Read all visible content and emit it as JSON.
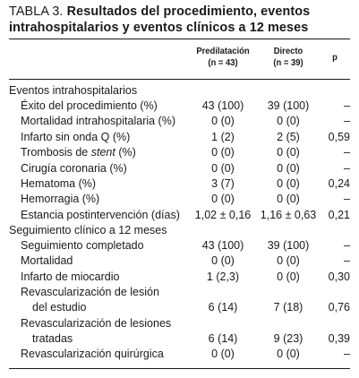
{
  "table": {
    "title_lead": "TABLA 3.",
    "title_bold": "Resultados del procedimiento, eventos intrahospitalarios y eventos clínicos a 12 meses",
    "headers": {
      "col1_line1": "Predilatación",
      "col1_line2": "(n = 43)",
      "col2_line1": "Directo",
      "col2_line2": "(n = 39)",
      "col3": "p"
    },
    "sections": [
      {
        "title": "Eventos intrahospitalarios",
        "rows": [
          {
            "label": "Éxito del procedimiento (%)",
            "pre": "43 (100)",
            "dir": "39 (100)",
            "p": "–"
          },
          {
            "label": "Mortalidad intrahospitalaria (%)",
            "pre": "0 (0)",
            "dir": "0 (0)",
            "p": "–"
          },
          {
            "label": "Infarto sin onda Q (%)",
            "pre": "1 (2)",
            "dir": "2 (5)",
            "p": "0,59"
          },
          {
            "label_pre": "Trombosis de ",
            "label_em": "stent",
            "label_post": " (%)",
            "pre": "0 (0)",
            "dir": "0 (0)",
            "p": "–"
          },
          {
            "label": "Cirugía coronaria (%)",
            "pre": "0 (0)",
            "dir": "0 (0)",
            "p": "–"
          },
          {
            "label": "Hematoma (%)",
            "pre": "3 (7)",
            "dir": "0 (0)",
            "p": "0,24"
          },
          {
            "label": "Hemorragia (%)",
            "pre": "0 (0)",
            "dir": "0 (0)",
            "p": "–"
          },
          {
            "label": "Estancia postintervención (días)",
            "pre": "1,02 ± 0,16",
            "dir": "1,16 ± 0,63",
            "p": "0,21"
          }
        ]
      },
      {
        "title": "Seguimiento clínico a 12 meses",
        "rows": [
          {
            "label": "Seguimiento completado",
            "pre": "43 (100)",
            "dir": "39 (100)",
            "p": "–"
          },
          {
            "label": "Mortalidad",
            "pre": "0 (0)",
            "dir": "0 (0)",
            "p": "–"
          },
          {
            "label": "Infarto de miocardio",
            "pre": "1 (2,3)",
            "dir": "0 (0)",
            "p": "0,30"
          },
          {
            "label_line1": "Revascularización de lesión",
            "label_line2": "del estudio",
            "pre": "6 (14)",
            "dir": "7 (18)",
            "p": "0,76"
          },
          {
            "label_line1": "Revascularización de lesiones",
            "label_line2": "tratadas",
            "pre": "6 (14)",
            "dir": "9 (23)",
            "p": "0,39"
          },
          {
            "label": "Revascularización quirúrgica",
            "pre": "0 (0)",
            "dir": "0 (0)",
            "p": "–"
          }
        ]
      }
    ]
  }
}
